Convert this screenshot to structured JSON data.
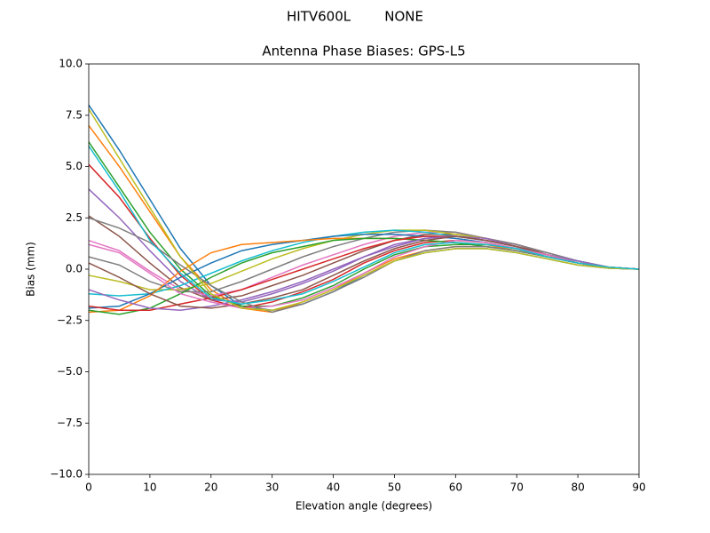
{
  "chart_data": {
    "type": "line",
    "suptitle": "HITV600L        NONE",
    "title": "Antenna Phase Biases: GPS-L5",
    "x_label": "Elevation angle (degrees)",
    "y_label": "Bias (mm)",
    "x": [
      0,
      5,
      10,
      15,
      20,
      25,
      30,
      35,
      40,
      45,
      50,
      55,
      60,
      65,
      70,
      75,
      80,
      85,
      90
    ],
    "xlim": [
      0,
      90
    ],
    "xticks": [
      0,
      10,
      20,
      30,
      40,
      50,
      60,
      70,
      80,
      90
    ],
    "ylim": [
      -10,
      10
    ],
    "yticks": [
      {
        "value": -10,
        "label": "−10.0"
      },
      {
        "value": -7.5,
        "label": "−7.5"
      },
      {
        "value": -5,
        "label": "−5.0"
      },
      {
        "value": -2.5,
        "label": "−2.5"
      },
      {
        "value": 0,
        "label": "0.0"
      },
      {
        "value": 2.5,
        "label": "2.5"
      },
      {
        "value": 5,
        "label": "5.0"
      },
      {
        "value": 7.5,
        "label": "7.5"
      },
      {
        "value": 10,
        "label": "10.0"
      }
    ],
    "series": [
      {
        "color": "#1f77b4",
        "values": [
          8.0,
          5.8,
          3.4,
          1.0,
          -0.8,
          -1.8,
          -2.0,
          -1.7,
          -1.1,
          -0.3,
          0.4,
          0.8,
          1.0,
          1.0,
          0.8,
          0.5,
          0.2,
          0.05,
          0
        ]
      },
      {
        "color": "#ff7f0e",
        "values": [
          7.0,
          5.0,
          2.8,
          0.6,
          -1.0,
          -1.9,
          -2.1,
          -1.6,
          -1.0,
          -0.2,
          0.5,
          0.9,
          1.1,
          1.1,
          0.9,
          0.6,
          0.3,
          0.05,
          0
        ]
      },
      {
        "color": "#2ca02c",
        "values": [
          6.2,
          4.0,
          1.8,
          0.0,
          -1.3,
          -1.8,
          -1.8,
          -1.4,
          -0.8,
          0.0,
          0.7,
          1.1,
          1.2,
          1.2,
          1.0,
          0.6,
          0.3,
          0.1,
          0
        ]
      },
      {
        "color": "#d62728",
        "values": [
          5.1,
          3.5,
          1.5,
          -0.3,
          -1.5,
          -1.9,
          -1.6,
          -1.1,
          -0.5,
          0.3,
          0.9,
          1.3,
          1.4,
          1.3,
          1.0,
          0.7,
          0.3,
          0.1,
          0
        ]
      },
      {
        "color": "#9467bd",
        "values": [
          3.9,
          2.5,
          0.9,
          -0.6,
          -1.5,
          -1.6,
          -1.2,
          -0.7,
          -0.1,
          0.6,
          1.2,
          1.5,
          1.6,
          1.4,
          1.1,
          0.7,
          0.4,
          0.1,
          0
        ]
      },
      {
        "color": "#8c564b",
        "values": [
          2.6,
          1.6,
          0.3,
          -0.9,
          -1.5,
          -1.3,
          -0.8,
          -0.3,
          0.3,
          0.9,
          1.4,
          1.7,
          1.7,
          1.5,
          1.2,
          0.7,
          0.4,
          0.1,
          0
        ]
      },
      {
        "color": "#e377c2",
        "values": [
          1.4,
          0.9,
          -0.1,
          -1.0,
          -1.3,
          -1.0,
          -0.4,
          0.2,
          0.7,
          1.2,
          1.6,
          1.8,
          1.8,
          1.5,
          1.2,
          0.8,
          0.4,
          0.1,
          0
        ]
      },
      {
        "color": "#7f7f7f",
        "values": [
          0.6,
          0.2,
          -0.6,
          -1.1,
          -1.1,
          -0.6,
          0.0,
          0.6,
          1.1,
          1.5,
          1.8,
          1.9,
          1.8,
          1.5,
          1.2,
          0.8,
          0.4,
          0.1,
          0
        ]
      },
      {
        "color": "#bcbd22",
        "values": [
          -0.3,
          -0.6,
          -1.0,
          -1.0,
          -0.7,
          -0.1,
          0.5,
          1.0,
          1.4,
          1.7,
          1.9,
          1.9,
          1.7,
          1.5,
          1.1,
          0.7,
          0.4,
          0.1,
          0
        ]
      },
      {
        "color": "#17becf",
        "values": [
          -1.2,
          -1.3,
          -1.2,
          -0.8,
          -0.2,
          0.4,
          0.9,
          1.3,
          1.6,
          1.8,
          1.9,
          1.8,
          1.6,
          1.4,
          1.1,
          0.7,
          0.4,
          0.1,
          0
        ]
      },
      {
        "color": "#1f77b4",
        "values": [
          -1.9,
          -1.8,
          -1.2,
          -0.4,
          0.3,
          0.9,
          1.2,
          1.4,
          1.6,
          1.7,
          1.7,
          1.6,
          1.5,
          1.3,
          1.0,
          0.7,
          0.3,
          0.1,
          0
        ]
      },
      {
        "color": "#ff7f0e",
        "values": [
          -2.1,
          -2.0,
          -1.3,
          -0.1,
          0.8,
          1.2,
          1.3,
          1.4,
          1.5,
          1.5,
          1.5,
          1.4,
          1.3,
          1.2,
          0.9,
          0.6,
          0.3,
          0.1,
          0
        ]
      },
      {
        "color": "#2ca02c",
        "values": [
          -2.0,
          -2.2,
          -1.9,
          -1.2,
          -0.4,
          0.3,
          0.8,
          1.1,
          1.4,
          1.5,
          1.5,
          1.4,
          1.3,
          1.1,
          0.9,
          0.6,
          0.3,
          0.1,
          0
        ]
      },
      {
        "color": "#d62728",
        "values": [
          -1.8,
          -2.0,
          -2.0,
          -1.7,
          -1.4,
          -1.0,
          -0.5,
          0.0,
          0.5,
          1.0,
          1.4,
          1.6,
          1.6,
          1.4,
          1.1,
          0.7,
          0.3,
          0.1,
          0
        ]
      },
      {
        "color": "#9467bd",
        "values": [
          -1.0,
          -1.5,
          -1.9,
          -2.0,
          -1.8,
          -1.5,
          -1.1,
          -0.6,
          0.0,
          0.6,
          1.1,
          1.5,
          1.6,
          1.5,
          1.1,
          0.7,
          0.4,
          0.1,
          0
        ]
      },
      {
        "color": "#8c564b",
        "values": [
          0.3,
          -0.4,
          -1.2,
          -1.8,
          -1.9,
          -1.7,
          -1.4,
          -1.0,
          -0.3,
          0.4,
          1.0,
          1.4,
          1.6,
          1.4,
          1.1,
          0.7,
          0.3,
          0.1,
          0
        ]
      },
      {
        "color": "#e377c2",
        "values": [
          1.2,
          0.8,
          -0.2,
          -1.2,
          -1.6,
          -1.9,
          -1.8,
          -1.5,
          -0.9,
          -0.2,
          0.6,
          1.1,
          1.4,
          1.3,
          1.0,
          0.7,
          0.3,
          0.1,
          0
        ]
      },
      {
        "color": "#7f7f7f",
        "values": [
          2.5,
          2.0,
          1.3,
          0.2,
          -0.8,
          -1.6,
          -2.1,
          -1.7,
          -1.1,
          -0.4,
          0.4,
          0.9,
          1.1,
          1.1,
          0.9,
          0.6,
          0.3,
          0.05,
          0
        ]
      },
      {
        "color": "#bcbd22",
        "values": [
          7.8,
          5.4,
          3.0,
          0.6,
          -1.2,
          -1.9,
          -2.0,
          -1.6,
          -1.0,
          -0.3,
          0.4,
          0.8,
          1.0,
          1.0,
          0.8,
          0.5,
          0.2,
          0.05,
          0
        ]
      },
      {
        "color": "#17becf",
        "values": [
          6.0,
          3.8,
          1.4,
          -0.2,
          -1.4,
          -1.7,
          -1.5,
          -1.2,
          -0.6,
          0.1,
          0.8,
          1.2,
          1.3,
          1.2,
          1.0,
          0.6,
          0.3,
          0.1,
          0
        ]
      }
    ]
  }
}
